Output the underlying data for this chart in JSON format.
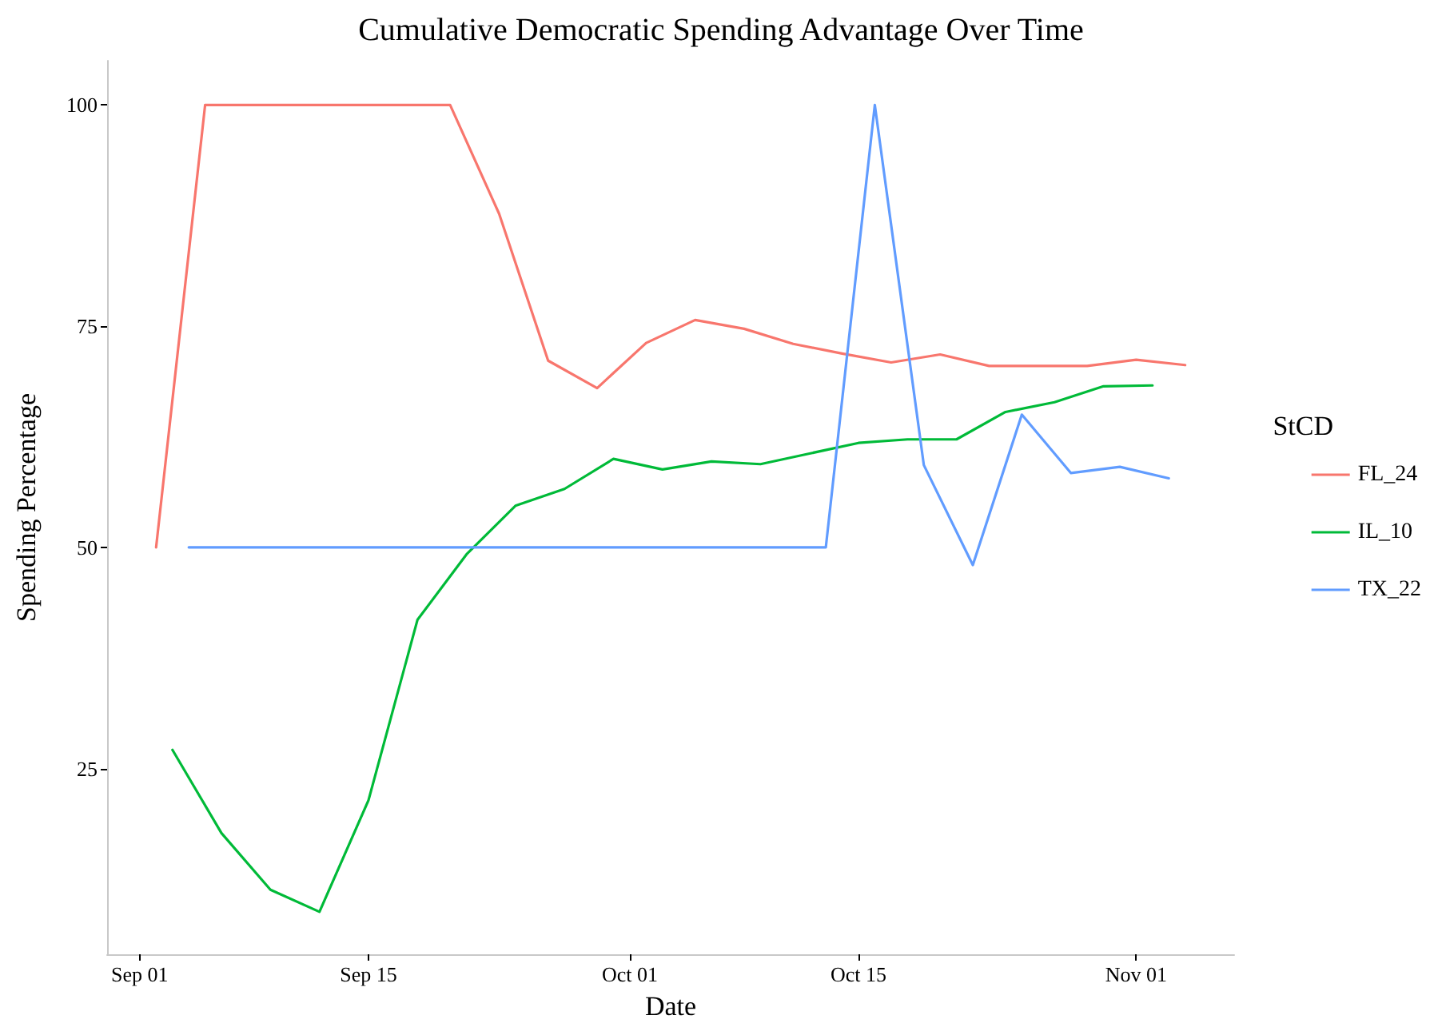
{
  "chart_data": {
    "type": "line",
    "title": "Cumulative Democratic Spending Advantage Over Time",
    "xlabel": "Date",
    "ylabel": "Spending Percentage",
    "legend_title": "StCD",
    "legend": "right",
    "grid": false,
    "marker": "none",
    "line_style": "solid",
    "xlim": [
      "--08-30",
      "--11-07"
    ],
    "xticks": [
      {
        "value": "--09-01",
        "label": "Sep 01"
      },
      {
        "value": "--09-15",
        "label": "Sep 15"
      },
      {
        "value": "--10-01",
        "label": "Oct 01"
      },
      {
        "value": "--10-15",
        "label": "Oct 15"
      },
      {
        "value": "--11-01",
        "label": "Nov 01"
      }
    ],
    "ylim": [
      4,
      105
    ],
    "yticks": [
      25,
      50,
      75,
      100
    ],
    "series": [
      {
        "name": "FL_24",
        "color": "#f8766d",
        "x": [
          "--09-02",
          "--09-05",
          "--09-08",
          "--09-11",
          "--09-14",
          "--09-17",
          "--09-20",
          "--09-23",
          "--09-26",
          "--09-29",
          "--10-02",
          "--10-05",
          "--10-08",
          "--10-11",
          "--10-14",
          "--10-17",
          "--10-20",
          "--10-23",
          "--10-26",
          "--10-29",
          "--11-01",
          "--11-04"
        ],
        "values": [
          50,
          100,
          100,
          100,
          100,
          100,
          100,
          87.7,
          71.1,
          68.0,
          73.1,
          75.7,
          74.7,
          73.0,
          71.9,
          70.9,
          71.8,
          70.5,
          70.5,
          70.5,
          71.2,
          70.6
        ]
      },
      {
        "name": "IL_10",
        "color": "#00ba38",
        "x": [
          "--09-03",
          "--09-06",
          "--09-09",
          "--09-12",
          "--09-15",
          "--09-18",
          "--09-21",
          "--09-24",
          "--09-27",
          "--09-30",
          "--10-03",
          "--10-06",
          "--10-09",
          "--10-12",
          "--10-15",
          "--10-18",
          "--10-21",
          "--10-24",
          "--10-27",
          "--10-30",
          "--11-02"
        ],
        "values": [
          27.1,
          17.7,
          11.3,
          8.8,
          21.4,
          41.8,
          49.2,
          54.7,
          56.6,
          60.0,
          58.8,
          59.7,
          59.4,
          60.6,
          61.8,
          62.2,
          62.2,
          65.3,
          66.4,
          68.2,
          68.3
        ]
      },
      {
        "name": "TX_22",
        "color": "#619cff",
        "x": [
          "--09-04",
          "--09-07",
          "--09-10",
          "--09-13",
          "--09-16",
          "--09-19",
          "--09-22",
          "--09-25",
          "--09-28",
          "--10-01",
          "--10-04",
          "--10-07",
          "--10-10",
          "--10-13",
          "--10-16",
          "--10-19",
          "--10-22",
          "--10-25",
          "--10-28",
          "--10-31",
          "--11-03"
        ],
        "values": [
          50,
          50,
          50,
          50,
          50,
          50,
          50,
          50,
          50,
          50,
          50,
          50,
          50,
          50,
          100,
          59.3,
          48.0,
          65.0,
          58.4,
          59.1,
          57.8
        ]
      }
    ]
  }
}
